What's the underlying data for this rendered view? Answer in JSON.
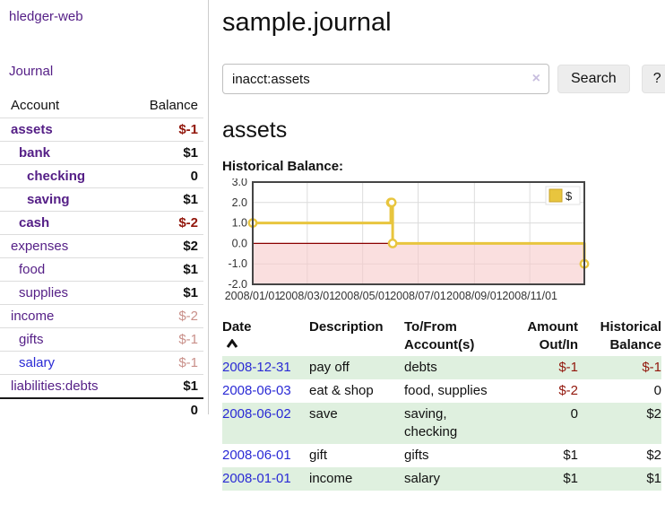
{
  "brand": "hledger-web",
  "nav": {
    "journal": "Journal"
  },
  "sidebar": {
    "header": {
      "account": "Account",
      "balance": "Balance"
    },
    "accounts": [
      {
        "name": "assets",
        "indent": 1,
        "emph": true,
        "balance": "$-1",
        "neg": true
      },
      {
        "name": "bank",
        "indent": 2,
        "emph": true,
        "balance": "$1"
      },
      {
        "name": "checking",
        "indent": 3,
        "emph": true,
        "balance": "0"
      },
      {
        "name": "saving",
        "indent": 3,
        "emph": true,
        "balance": "$1"
      },
      {
        "name": "cash",
        "indent": 2,
        "emph": true,
        "balance": "$-2",
        "neg": true
      },
      {
        "name": "expenses",
        "indent": 1,
        "emph": false,
        "balance": "$2"
      },
      {
        "name": "food",
        "indent": 2,
        "emph": false,
        "balance": "$1"
      },
      {
        "name": "supplies",
        "indent": 2,
        "emph": false,
        "balance": "$1"
      },
      {
        "name": "income",
        "indent": 1,
        "emph": false,
        "balance": "$-2",
        "muted": true
      },
      {
        "name": "gifts",
        "indent": 2,
        "emph": false,
        "balance": "$-1",
        "muted": true
      },
      {
        "name": "salary",
        "indent": 2,
        "emph": false,
        "balance": "$-1",
        "muted": true,
        "blue": true
      },
      {
        "name": "liabilities:debts",
        "indent": 1,
        "emph": false,
        "balance": "$1"
      }
    ],
    "total": "0"
  },
  "main": {
    "title": "sample.journal",
    "search": {
      "value": "inacct:assets",
      "clear": "×",
      "button": "Search",
      "help": "?"
    },
    "heading": "assets",
    "chart_label": "Historical Balance:"
  },
  "chart_data": {
    "type": "line",
    "style": "step-after",
    "title": "Historical Balance:",
    "legend": "$",
    "legend_position": "top-right",
    "grid": true,
    "ylim": [
      -2,
      3
    ],
    "y_ticks": [
      3.0,
      2.0,
      1.0,
      0.0,
      -1.0,
      -2.0
    ],
    "x_range": [
      "2008-01-01",
      "2008-12-31"
    ],
    "x_tick_dates": [
      "2008-01-01",
      "2008-03-01",
      "2008-05-01",
      "2008-07-01",
      "2008-09-01",
      "2008-11-01"
    ],
    "x_ticks": [
      "2008/01/01",
      "2008/03/01",
      "2008/05/01",
      "2008/07/01",
      "2008/09/01",
      "2008/11/01"
    ],
    "series": [
      {
        "name": "$",
        "color": "#e8c53e",
        "points": [
          {
            "date": "2008-01-01",
            "value": 1
          },
          {
            "date": "2008-06-01",
            "value": 2
          },
          {
            "date": "2008-06-02",
            "value": 2
          },
          {
            "date": "2008-06-03",
            "value": 0
          },
          {
            "date": "2008-12-31",
            "value": -1
          }
        ]
      }
    ],
    "zero_line_color": "#8b0000",
    "negative_fill": "#f6caca"
  },
  "register": {
    "headers": {
      "date": {
        "line1": "Date"
      },
      "description": {
        "line1": "Description"
      },
      "account": {
        "line1": "To/From",
        "line2": "Account(s)"
      },
      "amount": {
        "line1": "Amount",
        "line2": "Out/In"
      },
      "balance": {
        "line1": "Historical",
        "line2": "Balance"
      }
    },
    "rows": [
      {
        "date": "2008-12-31",
        "description": "pay off",
        "accounts": "debts",
        "amount": "$-1",
        "amount_neg": true,
        "balance": "$-1",
        "balance_neg": true
      },
      {
        "date": "2008-06-03",
        "description": "eat & shop",
        "accounts": "food, supplies",
        "amount": "$-2",
        "amount_neg": true,
        "balance": "0"
      },
      {
        "date": "2008-06-02",
        "description": "save",
        "accounts": "saving, checking",
        "amount": "0",
        "balance": "$2"
      },
      {
        "date": "2008-06-01",
        "description": "gift",
        "accounts": "gifts",
        "amount": "$1",
        "balance": "$2"
      },
      {
        "date": "2008-01-01",
        "description": "income",
        "accounts": "salary",
        "amount": "$1",
        "balance": "$1"
      }
    ]
  }
}
